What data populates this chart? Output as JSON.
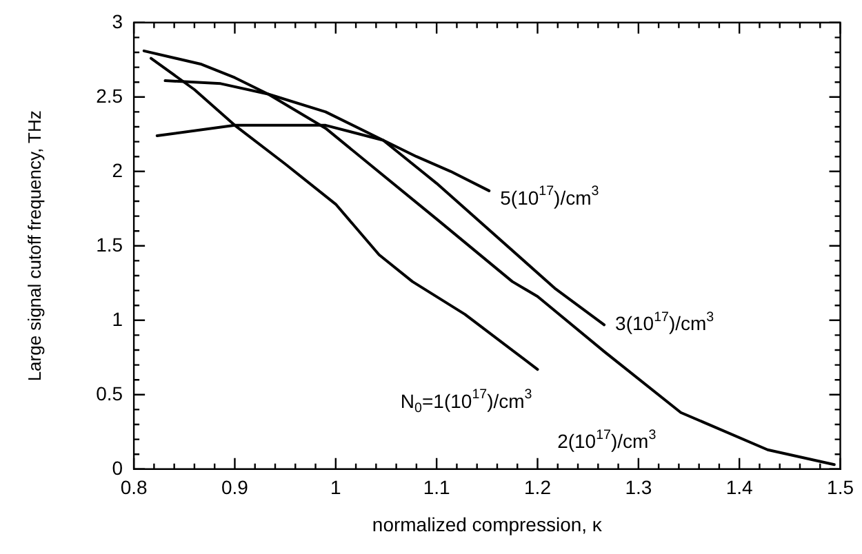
{
  "chart_data": {
    "type": "line",
    "xlabel": "normalized compression, κ",
    "ylabel": "Large signal cutoff frequency, THz",
    "xlim": [
      0.8,
      1.5
    ],
    "xticks": [
      0.8,
      {
        "value": 0.82,
        "label": null
      },
      {
        "value": 0.84,
        "label": null
      },
      {
        "value": 0.86,
        "label": null
      },
      {
        "value": 0.88,
        "label": null
      },
      0.9,
      {
        "value": 0.92,
        "label": null
      },
      {
        "value": 0.94,
        "label": null
      },
      {
        "value": 0.96,
        "label": null
      },
      {
        "value": 0.98,
        "label": null
      },
      1,
      {
        "value": 1.02,
        "label": null
      },
      {
        "value": 1.04,
        "label": null
      },
      {
        "value": 1.06,
        "label": null
      },
      {
        "value": 1.08,
        "label": null
      },
      1.1,
      {
        "value": 1.12,
        "label": null
      },
      {
        "value": 1.14,
        "label": null
      },
      {
        "value": 1.16,
        "label": null
      },
      {
        "value": 1.18,
        "label": null
      },
      1.2,
      {
        "value": 1.22,
        "label": null
      },
      {
        "value": 1.24,
        "label": null
      },
      {
        "value": 1.26,
        "label": null
      },
      {
        "value": 1.28,
        "label": null
      },
      1.3,
      {
        "value": 1.32,
        "label": null
      },
      {
        "value": 1.34,
        "label": null
      },
      {
        "value": 1.36,
        "label": null
      },
      {
        "value": 1.38,
        "label": null
      },
      1.4,
      {
        "value": 1.42,
        "label": null
      },
      {
        "value": 1.44,
        "label": null
      },
      {
        "value": 1.46,
        "label": null
      },
      {
        "value": 1.48,
        "label": null
      },
      1.5
    ],
    "ylim": [
      0,
      3
    ],
    "yticks": [
      0,
      {
        "value": 0.1,
        "label": null
      },
      {
        "value": 0.2,
        "label": null
      },
      {
        "value": 0.3,
        "label": null
      },
      {
        "value": 0.4,
        "label": null
      },
      0.5,
      {
        "value": 0.6,
        "label": null
      },
      {
        "value": 0.7,
        "label": null
      },
      {
        "value": 0.8,
        "label": null
      },
      {
        "value": 0.9,
        "label": null
      },
      1,
      {
        "value": 1.1,
        "label": null
      },
      {
        "value": 1.2,
        "label": null
      },
      {
        "value": 1.3,
        "label": null
      },
      {
        "value": 1.4,
        "label": null
      },
      1.5,
      {
        "value": 1.6,
        "label": null
      },
      {
        "value": 1.7,
        "label": null
      },
      {
        "value": 1.8,
        "label": null
      },
      {
        "value": 1.9,
        "label": null
      },
      2,
      {
        "value": 2.1,
        "label": null
      },
      {
        "value": 2.2,
        "label": null
      },
      {
        "value": 2.3,
        "label": null
      },
      {
        "value": 2.4,
        "label": null
      },
      2.5,
      {
        "value": 2.6,
        "label": null
      },
      {
        "value": 2.7,
        "label": null
      },
      {
        "value": 2.8,
        "label": null
      },
      {
        "value": 2.9,
        "label": null
      },
      3
    ],
    "marker": "none",
    "line_style": "solid",
    "legend": false,
    "series": [
      {
        "name": "N$_{0}$=1(10$^{17}$)/cm$^{3}$",
        "color": "#000000",
        "x": [
          0.817,
          0.86,
          0.9,
          0.95,
          1.0,
          1.043,
          1.076,
          1.128,
          1.2
        ],
        "values": [
          2.76,
          2.55,
          2.31,
          2.05,
          1.78,
          1.44,
          1.26,
          1.04,
          0.67
        ]
      },
      {
        "name": "2(10$^{17}$)/cm$^{3}$",
        "color": "#000000",
        "x": [
          0.81,
          0.867,
          0.9,
          0.933,
          0.99,
          1.1,
          1.175,
          1.2,
          1.266,
          1.342,
          1.428,
          1.494
        ],
        "values": [
          2.81,
          2.72,
          2.63,
          2.52,
          2.29,
          1.68,
          1.26,
          1.16,
          0.79,
          0.38,
          0.13,
          0.03
        ]
      },
      {
        "name": "3(10$^{17}$)/cm$^{3}$",
        "color": "#000000",
        "x": [
          0.831,
          0.886,
          0.933,
          0.99,
          1.047,
          1.1,
          1.218,
          1.266
        ],
        "values": [
          2.61,
          2.59,
          2.52,
          2.4,
          2.21,
          1.92,
          1.21,
          0.97
        ]
      },
      {
        "name": "5(10$^{17}$)/cm$^{3}$",
        "color": "#000000",
        "x": [
          0.823,
          0.9,
          0.99,
          1.047,
          1.08,
          1.114,
          1.152
        ],
        "values": [
          2.24,
          2.31,
          2.31,
          2.21,
          2.1,
          2.0,
          1.87
        ]
      }
    ]
  }
}
